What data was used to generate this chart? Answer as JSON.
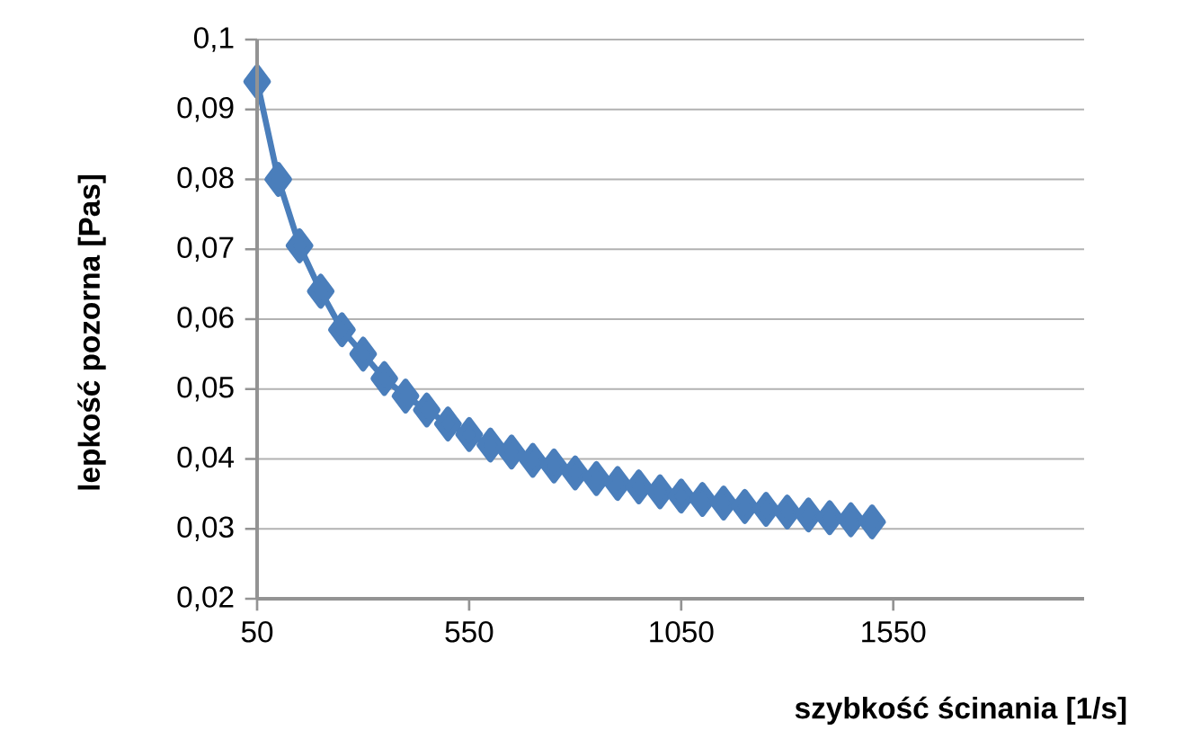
{
  "chart_data": {
    "type": "line",
    "xlabel": "szybkość ścinania [1/s]",
    "ylabel": "lepkość pozorna [Pas]",
    "x": [
      50,
      100,
      150,
      200,
      250,
      300,
      350,
      400,
      450,
      500,
      550,
      600,
      650,
      700,
      750,
      800,
      850,
      900,
      950,
      1000,
      1050,
      1100,
      1150,
      1200,
      1250,
      1300,
      1350,
      1400,
      1450,
      1500
    ],
    "series": [
      {
        "color": "#4a7ebb",
        "values": [
          0.094,
          0.08,
          0.0705,
          0.064,
          0.0585,
          0.055,
          0.0515,
          0.049,
          0.047,
          0.045,
          0.0435,
          0.042,
          0.041,
          0.0398,
          0.039,
          0.038,
          0.0372,
          0.0365,
          0.036,
          0.0353,
          0.0347,
          0.0342,
          0.0337,
          0.0332,
          0.0328,
          0.0324,
          0.032,
          0.0316,
          0.0313,
          0.031
        ]
      }
    ],
    "xlim": [
      50,
      2000
    ],
    "ylim": [
      0.02,
      0.1
    ],
    "xticks": [
      50,
      550,
      1050,
      1550
    ],
    "yticks": [
      {
        "value": 0.02,
        "label": "0,02"
      },
      {
        "value": 0.03,
        "label": "0,03"
      },
      {
        "value": 0.04,
        "label": "0,04"
      },
      {
        "value": 0.05,
        "label": "0,05"
      },
      {
        "value": 0.06,
        "label": "0,06"
      },
      {
        "value": 0.07,
        "label": "0,07"
      },
      {
        "value": 0.08,
        "label": "0,08"
      },
      {
        "value": 0.09,
        "label": "0,09"
      },
      {
        "value": 0.1,
        "label": "0,1"
      }
    ],
    "grid": "y",
    "marker": "diamond",
    "line_style": "solid"
  }
}
